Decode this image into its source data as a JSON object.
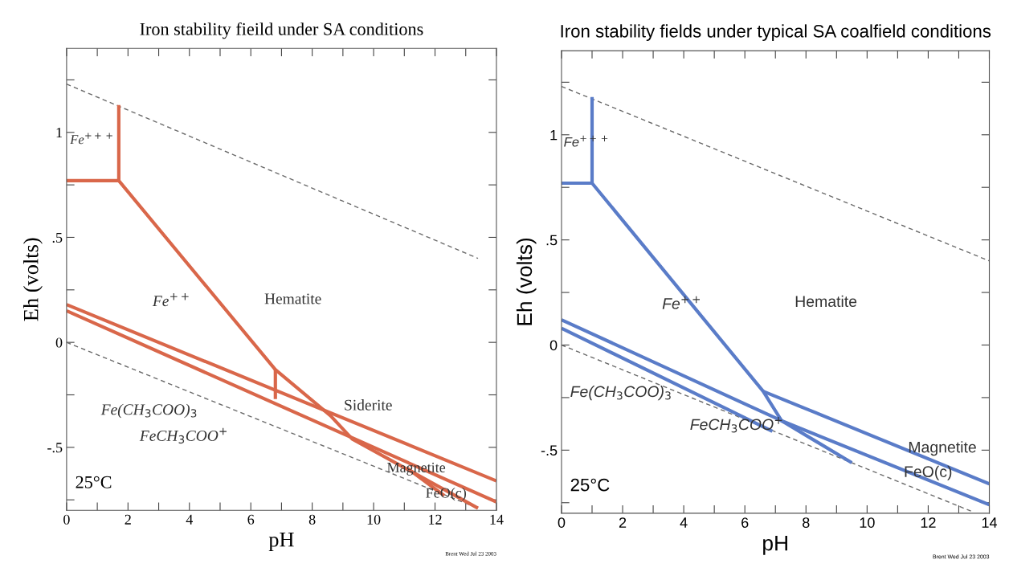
{
  "chart_data": [
    {
      "type": "line",
      "title": "Iron stability fieild under SA conditions",
      "xlabel": "pH",
      "ylabel": "Eh (volts)",
      "xlim": [
        0,
        14
      ],
      "ylim": [
        -0.8,
        1.4
      ],
      "xticks": [
        0,
        {
          "value": 1,
          "label": null
        },
        2,
        {
          "value": 3,
          "label": null
        },
        4,
        {
          "value": 5,
          "label": null
        },
        6,
        {
          "value": 7,
          "label": null
        },
        8,
        {
          "value": 9,
          "label": null
        },
        10,
        {
          "value": 11,
          "label": null
        },
        12,
        {
          "value": 13,
          "label": null
        },
        14
      ],
      "yticks": [
        {
          "value": -0.75,
          "label": null
        },
        {
          "value": -0.5,
          "label": "-.5"
        },
        {
          "value": -0.25,
          "label": null
        },
        0,
        {
          "value": 0.25,
          "label": null
        },
        {
          "value": 0.5,
          "label": ".5"
        },
        {
          "value": 0.75,
          "label": null
        },
        1,
        {
          "value": 1.25,
          "label": null
        }
      ],
      "grid": false,
      "legend": false,
      "series": [
        {
          "x": [
            0,
            13.4
          ],
          "values": [
            1.23,
            0.4
          ],
          "color": "#6b6b6b",
          "line_style": "dashed"
        },
        {
          "x": [
            0,
            13.4
          ],
          "values": [
            0,
            -0.79
          ],
          "color": "#6b6b6b",
          "line_style": "dashed"
        },
        {
          "x": [
            1.7,
            1.7
          ],
          "values": [
            0.77,
            1.13
          ],
          "color": "#d9674a",
          "line_style": "solid"
        },
        {
          "x": [
            0,
            1.7,
            6.8,
            8.6,
            9.3,
            13.4
          ],
          "values": [
            0.77,
            0.77,
            -0.13,
            -0.35,
            -0.46,
            -0.79
          ],
          "color": "#d9674a",
          "line_style": "solid"
        },
        {
          "x": [
            6.8,
            6.8
          ],
          "values": [
            -0.13,
            -0.27
          ],
          "color": "#d9674a",
          "line_style": "solid"
        },
        {
          "x": [
            0,
            14
          ],
          "values": [
            0.18,
            -0.66
          ],
          "color": "#d9674a",
          "line_style": "solid"
        },
        {
          "x": [
            0,
            14
          ],
          "values": [
            0.15,
            -0.76
          ],
          "color": "#d9674a",
          "line_style": "solid"
        },
        {
          "x": [
            11.1,
            12.3
          ],
          "values": [
            -0.6,
            -0.73
          ],
          "color": "#d9674a",
          "line_style": "solid"
        }
      ],
      "annotations": [
        "Fe$^{+++}$",
        "Fe$^{++}$",
        "Hematite",
        "Fe(CH$_{3}$COO)$_{3}$",
        "FeCH$_{3}$COO$^{+}$",
        "Siderite",
        "Magnetite",
        "FeO(c)",
        "25°C",
        "Brent Wed Jul 23 2003"
      ]
    },
    {
      "type": "line",
      "title": "Iron stability fields under typical SA coalfield conditions",
      "xlabel": "pH",
      "ylabel": "Eh (volts)",
      "xlim": [
        0,
        14
      ],
      "ylim": [
        -0.8,
        1.4
      ],
      "xticks": [
        0,
        {
          "value": 1,
          "label": null
        },
        2,
        {
          "value": 3,
          "label": null
        },
        4,
        {
          "value": 5,
          "label": null
        },
        6,
        {
          "value": 7,
          "label": null
        },
        8,
        {
          "value": 9,
          "label": null
        },
        10,
        {
          "value": 11,
          "label": null
        },
        12,
        {
          "value": 13,
          "label": null
        },
        14
      ],
      "yticks": [
        {
          "value": -0.75,
          "label": null
        },
        {
          "value": -0.5,
          "label": "-.5"
        },
        {
          "value": -0.25,
          "label": null
        },
        0,
        {
          "value": 0.25,
          "label": null
        },
        {
          "value": 0.5,
          "label": ".5"
        },
        {
          "value": 0.75,
          "label": null
        },
        1,
        {
          "value": 1.25,
          "label": null
        }
      ],
      "grid": false,
      "legend": false,
      "series": [
        {
          "x": [
            0,
            14
          ],
          "values": [
            1.23,
            0.4
          ],
          "color": "#6b6b6b",
          "line_style": "dashed"
        },
        {
          "x": [
            0,
            13.4
          ],
          "values": [
            0,
            -0.79
          ],
          "color": "#6b6b6b",
          "line_style": "dashed"
        },
        {
          "x": [
            1.0,
            1.0
          ],
          "values": [
            0.77,
            1.18
          ],
          "color": "#5a7cc8",
          "line_style": "solid"
        },
        {
          "x": [
            0,
            1.0,
            6.6,
            7.2,
            9.5
          ],
          "values": [
            0.77,
            0.77,
            -0.22,
            -0.36,
            -0.56
          ],
          "color": "#5a7cc8",
          "line_style": "solid"
        },
        {
          "x": [
            6.6,
            14
          ],
          "values": [
            -0.22,
            -0.66
          ],
          "color": "#5a7cc8",
          "line_style": "solid"
        },
        {
          "x": [
            0,
            7.2,
            14
          ],
          "values": [
            0.12,
            -0.36,
            -0.76
          ],
          "color": "#5a7cc8",
          "line_style": "solid"
        },
        {
          "x": [
            0,
            6.9
          ],
          "values": [
            0.08,
            -0.41
          ],
          "color": "#5a7cc8",
          "line_style": "solid"
        }
      ],
      "annotations": [
        "Fe$^{+++}$",
        "Fe$^{++}$",
        "Hematite",
        "Fe(CH$_{3}$COO)$_{3}$",
        "FeCH$_{3}$COO$^{+}$",
        "Magnetite",
        "FeO(c)",
        "25°C",
        "Brent Wed Jul 23 2003"
      ]
    }
  ]
}
